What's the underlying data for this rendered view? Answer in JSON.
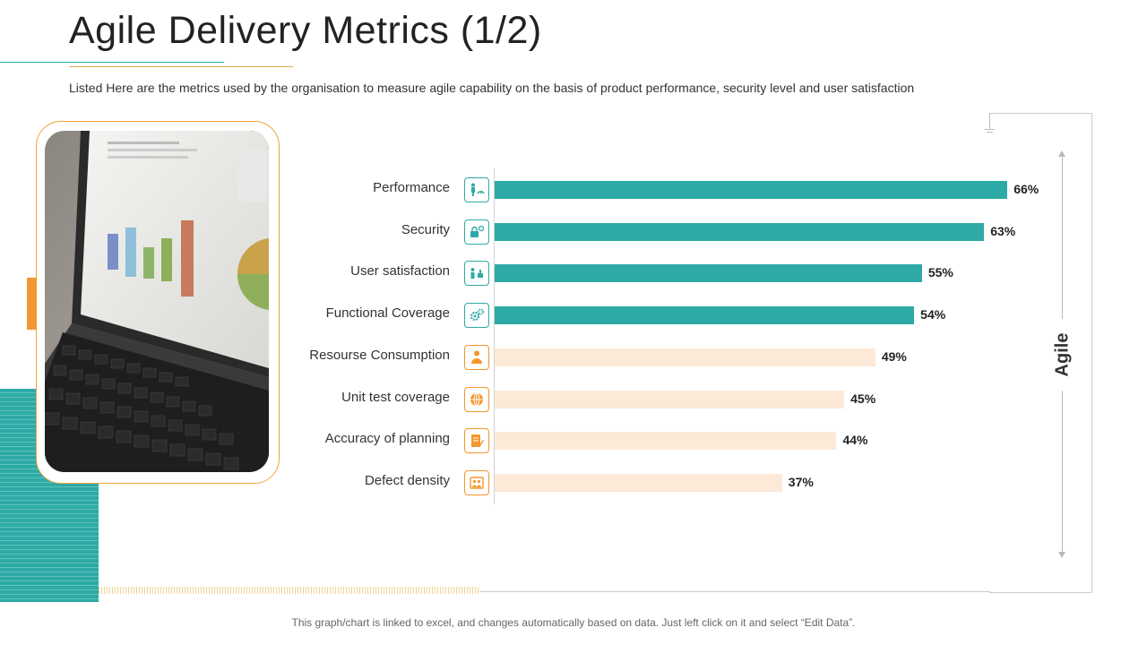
{
  "title": "Agile Delivery Metrics (1/2)",
  "subtitle": "Listed Here are the metrics used by the organisation to measure agile capability on the basis of product performance, security level and user satisfaction",
  "side_label": "Agile",
  "footnote": "This graph/chart is linked to excel, and changes automatically based on data. Just left click on it and select “Edit Data”.",
  "colors": {
    "teal": "#2eaaa6",
    "peach": "#fde9d8",
    "orange": "#f5962e",
    "gold": "#e0a94a"
  },
  "chart_data": {
    "type": "bar",
    "orientation": "horizontal",
    "xlim": [
      0,
      100
    ],
    "categories": [
      "Performance",
      "Security",
      "User satisfaction",
      "Functional Coverage",
      "Resourse Consumption",
      "Unit test coverage",
      "Accuracy of planning",
      "Defect density"
    ],
    "values": [
      66,
      63,
      55,
      54,
      49,
      45,
      44,
      37
    ],
    "value_labels": [
      "66%",
      "63%",
      "55%",
      "54%",
      "49%",
      "45%",
      "44%",
      "37%"
    ],
    "bar_colors": [
      "#2eaaa6",
      "#2eaaa6",
      "#2eaaa6",
      "#2eaaa6",
      "#fde9d8",
      "#fde9d8",
      "#fde9d8",
      "#fde9d8"
    ],
    "icons": [
      "performance-icon",
      "security-icon",
      "user-satisfaction-icon",
      "gears-icon",
      "person-icon",
      "globe-icon",
      "document-edit-icon",
      "image-icon"
    ],
    "icon_colors": [
      "#2eaaa6",
      "#2eaaa6",
      "#2eaaa6",
      "#2eaaa6",
      "#f5962e",
      "#f5962e",
      "#f5962e",
      "#f5962e"
    ],
    "grid": false,
    "legend": "none"
  }
}
